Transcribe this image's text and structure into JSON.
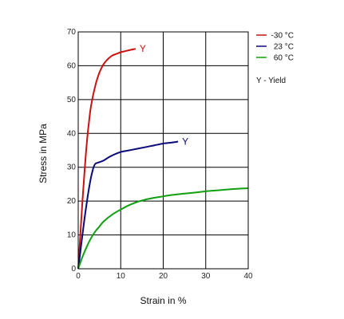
{
  "chart_data": {
    "type": "line",
    "xlabel": "Strain in %",
    "ylabel": "Stress in MPa",
    "xlim": [
      0,
      40
    ],
    "ylim": [
      0,
      70
    ],
    "x_ticks": [
      0,
      10,
      20,
      30,
      40
    ],
    "y_ticks": [
      0,
      10,
      20,
      30,
      40,
      50,
      60,
      70
    ],
    "grid": true,
    "legend_position": "top-right",
    "legend_note": "Y - Yield",
    "series": [
      {
        "name": "-30 °C",
        "color": "#cc1111",
        "x": [
          0,
          0.5,
          1,
          1.5,
          2,
          2.5,
          3,
          4,
          5,
          6,
          7,
          8,
          9,
          10,
          11,
          12,
          13.5
        ],
        "y": [
          0,
          10,
          20,
          29,
          37,
          43,
          48,
          54,
          58,
          60.5,
          62,
          63,
          63.5,
          64,
          64.3,
          64.6,
          65
        ],
        "annotation": "Y"
      },
      {
        "name": "23 °C",
        "color": "#0a0a7a",
        "x": [
          0,
          0.5,
          1,
          1.5,
          2,
          2.5,
          3,
          3.5,
          4,
          5,
          6,
          7,
          8,
          10,
          12,
          14,
          16,
          18,
          20,
          22,
          23.5
        ],
        "y": [
          0,
          5,
          10,
          15,
          19.5,
          23.5,
          27,
          29.5,
          31,
          31.5,
          32,
          32.8,
          33.5,
          34.5,
          35,
          35.5,
          36,
          36.5,
          37,
          37.3,
          37.6
        ],
        "annotation": "Y"
      },
      {
        "name": "60 °C",
        "color": "#11a011",
        "x": [
          0,
          1,
          2,
          3,
          4,
          5,
          6,
          8,
          10,
          12,
          14,
          16,
          18,
          20,
          22,
          25,
          28,
          31,
          34,
          37,
          40
        ],
        "y": [
          0,
          3.5,
          6.5,
          9,
          11,
          12.5,
          14,
          16,
          17.5,
          18.8,
          19.8,
          20.5,
          21,
          21.4,
          21.8,
          22.2,
          22.6,
          23,
          23.3,
          23.6,
          23.8
        ]
      }
    ]
  }
}
